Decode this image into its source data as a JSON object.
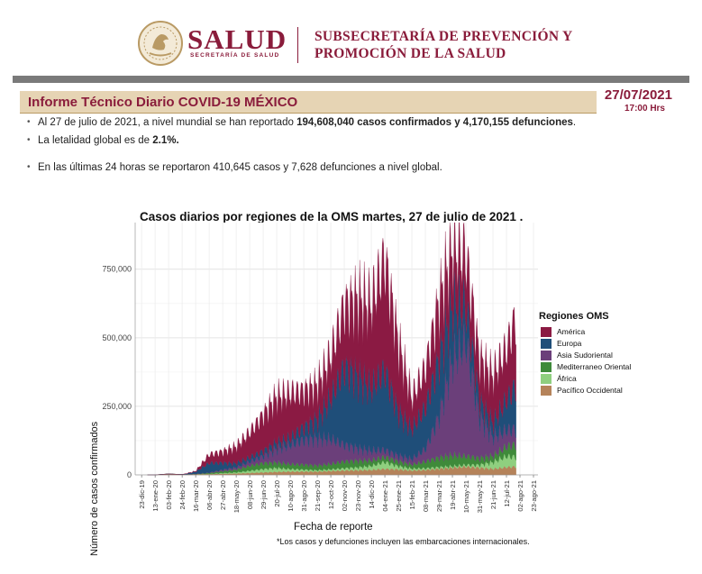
{
  "header": {
    "brand": "SALUD",
    "brand_sub": "SECRETARÍA DE SALUD",
    "subsecretaria_line1": "SUBSECRETARÍA DE PREVENCIÓN Y",
    "subsecretaria_line2": "PROMOCIÓN DE LA SALUD",
    "seal_icon": "mexico-coat-of-arms-icon",
    "brand_color": "#8a1c3b"
  },
  "report": {
    "title": "Informe Técnico Diario COVID-19 MÉXICO",
    "date": "27/07/2021",
    "time": "17:00 Hrs"
  },
  "bullets": [
    {
      "before": "Al 27 de julio de 2021, a nivel mundial se han reportado ",
      "bold": "194,608,040 casos confirmados y 4,170,155 defunciones",
      "after": "."
    },
    {
      "before": "La letalidad global es de ",
      "bold": "2.1%.",
      "after": ""
    },
    {
      "before": "En las últimas 24 horas se reportaron 410,645 casos y 7,628 defunciones a nivel global.",
      "bold": "",
      "after": ""
    }
  ],
  "chart_data": {
    "type": "area",
    "title": "Casos diarios por regiones de la OMS martes, 27 de julio de 2021 .",
    "xlabel": "Fecha de reporte",
    "ylabel": "Número de casos confirmados",
    "footnote": "*Los casos y defunciones incluyen las embarcaciones internacionales.",
    "legend_title": "Regiones OMS",
    "legend_position": "right",
    "grid": true,
    "stacked": true,
    "ylim": [
      0,
      920000
    ],
    "y_ticks": [
      0,
      250000,
      500000,
      750000
    ],
    "y_tick_labels": [
      "0",
      "250,000",
      "500,000",
      "750,000"
    ],
    "x_tick_labels": [
      "23-dic-19",
      "13-ene-20",
      "03-feb-20",
      "24-feb-20",
      "16-mar-20",
      "06-abr-20",
      "27-abr-20",
      "18-may-20",
      "08-jun-20",
      "29-jun-20",
      "20-jul-20",
      "10-ago-20",
      "31-ago-20",
      "21-sep-20",
      "12-oct-20",
      "02-nov-20",
      "23-nov-20",
      "14-dic-20",
      "04-ene-21",
      "25-ene-21",
      "15-feb-21",
      "08-mar-21",
      "29-mar-21",
      "19-abr-21",
      "10-may-21",
      "31-may-21",
      "21-jun-21",
      "12-jul-21",
      "02-ago-21",
      "23-ago-21"
    ],
    "x": [
      "2019-12-23",
      "2020-01-13",
      "2020-02-03",
      "2020-02-24",
      "2020-03-16",
      "2020-04-06",
      "2020-04-27",
      "2020-05-18",
      "2020-06-08",
      "2020-06-29",
      "2020-07-20",
      "2020-08-10",
      "2020-08-31",
      "2020-09-21",
      "2020-10-12",
      "2020-11-02",
      "2020-11-23",
      "2020-12-14",
      "2021-01-04",
      "2021-01-25",
      "2021-02-15",
      "2021-03-08",
      "2021-03-29",
      "2021-04-19",
      "2021-05-10",
      "2021-05-31",
      "2021-06-21",
      "2021-07-12",
      "2021-07-27"
    ],
    "series": [
      {
        "name": "Pacífico Occidental",
        "color": "#b5835a",
        "values": [
          0,
          10,
          3500,
          1500,
          3000,
          3000,
          4000,
          5000,
          7000,
          9000,
          11000,
          12000,
          12000,
          12000,
          14000,
          16000,
          17000,
          18000,
          22000,
          20000,
          16000,
          18000,
          22000,
          26000,
          30000,
          26000,
          22000,
          28000,
          30000
        ]
      },
      {
        "name": "África",
        "color": "#8fcf7f",
        "values": [
          0,
          0,
          0,
          0,
          100,
          800,
          2500,
          4000,
          8000,
          12000,
          14000,
          9000,
          7000,
          5000,
          6000,
          8000,
          10000,
          15000,
          25000,
          12000,
          7000,
          6000,
          6000,
          6000,
          6000,
          10000,
          25000,
          40000,
          35000
        ]
      },
      {
        "name": "Mediterraneo Oriental",
        "color": "#3f8a3a",
        "values": [
          0,
          0,
          0,
          0,
          300,
          3000,
          7000,
          10000,
          18000,
          22000,
          20000,
          18000,
          18000,
          17000,
          20000,
          25000,
          25000,
          20000,
          18000,
          18000,
          15000,
          25000,
          35000,
          40000,
          32000,
          25000,
          22000,
          35000,
          45000
        ]
      },
      {
        "name": "Asia Sudoriental",
        "color": "#6b3f7a",
        "values": [
          0,
          0,
          0,
          0,
          300,
          1500,
          5000,
          8000,
          15000,
          25000,
          50000,
          70000,
          90000,
          100000,
          90000,
          60000,
          45000,
          35000,
          25000,
          20000,
          20000,
          45000,
          150000,
          350000,
          420000,
          150000,
          70000,
          60000,
          55000
        ]
      },
      {
        "name": "Europa",
        "color": "#1f4e79",
        "values": [
          0,
          0,
          0,
          0,
          8000,
          35000,
          25000,
          15000,
          15000,
          18000,
          22000,
          25000,
          45000,
          70000,
          150000,
          280000,
          260000,
          230000,
          290000,
          160000,
          110000,
          150000,
          210000,
          200000,
          130000,
          60000,
          50000,
          110000,
          160000
        ]
      },
      {
        "name": "América",
        "color": "#8b1a43",
        "values": [
          0,
          0,
          0,
          0,
          2000,
          30000,
          40000,
          60000,
          90000,
          130000,
          165000,
          160000,
          130000,
          120000,
          150000,
          220000,
          280000,
          300000,
          400000,
          250000,
          110000,
          140000,
          200000,
          200000,
          180000,
          150000,
          170000,
          180000,
          250000
        ]
      }
    ]
  }
}
